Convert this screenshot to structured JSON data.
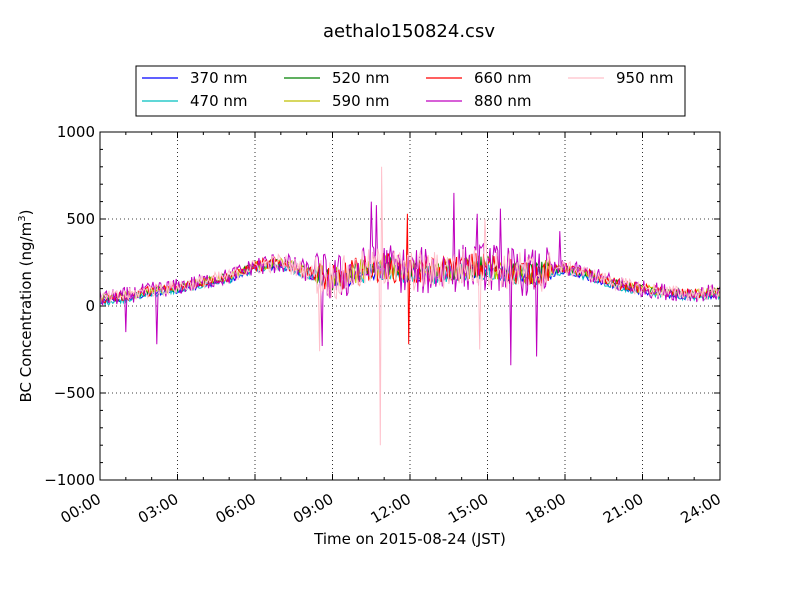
{
  "chart_data": {
    "type": "line",
    "title": "aethalo150824.csv",
    "xlabel": "Time on 2015-08-24 (JST)",
    "ylabel_main": "BC Concentration (ng/m",
    "ylabel_sup": "3",
    "ylabel_close": ")",
    "xlim": [
      0,
      24
    ],
    "ylim": [
      -1000,
      1000
    ],
    "x_ticks": [
      {
        "value": 0,
        "label": "00:00"
      },
      {
        "value": 3,
        "label": "03:00"
      },
      {
        "value": 6,
        "label": "06:00"
      },
      {
        "value": 9,
        "label": "09:00"
      },
      {
        "value": 12,
        "label": "12:00"
      },
      {
        "value": 15,
        "label": "15:00"
      },
      {
        "value": 18,
        "label": "18:00"
      },
      {
        "value": 21,
        "label": "21:00"
      },
      {
        "value": 24,
        "label": "24:00"
      }
    ],
    "y_ticks": [
      {
        "value": -1000,
        "label": "−1000"
      },
      {
        "value": -500,
        "label": "−500"
      },
      {
        "value": 0,
        "label": "0"
      },
      {
        "value": 500,
        "label": "500"
      },
      {
        "value": 1000,
        "label": "1000"
      }
    ],
    "grid": "dotted",
    "legend_position": "top-center",
    "series": [
      {
        "name": "370 nm",
        "color": "#0000ff"
      },
      {
        "name": "470 nm",
        "color": "#00bfbf"
      },
      {
        "name": "520 nm",
        "color": "#008000"
      },
      {
        "name": "590 nm",
        "color": "#bfbf00"
      },
      {
        "name": "660 nm",
        "color": "#ff0000"
      },
      {
        "name": "880 nm",
        "color": "#bf00bf"
      },
      {
        "name": "950 nm",
        "color": "#ffc0cb"
      }
    ],
    "baseline_profile": [
      {
        "x": 0,
        "y": 40
      },
      {
        "x": 1,
        "y": 60
      },
      {
        "x": 2,
        "y": 90
      },
      {
        "x": 3,
        "y": 110
      },
      {
        "x": 4,
        "y": 140
      },
      {
        "x": 5,
        "y": 170
      },
      {
        "x": 6,
        "y": 230
      },
      {
        "x": 7,
        "y": 250
      },
      {
        "x": 8,
        "y": 200
      },
      {
        "x": 9,
        "y": 150
      },
      {
        "x": 10,
        "y": 200
      },
      {
        "x": 11,
        "y": 230
      },
      {
        "x": 12,
        "y": 200
      },
      {
        "x": 13,
        "y": 200
      },
      {
        "x": 14,
        "y": 220
      },
      {
        "x": 15,
        "y": 230
      },
      {
        "x": 16,
        "y": 200
      },
      {
        "x": 17,
        "y": 190
      },
      {
        "x": 18,
        "y": 220
      },
      {
        "x": 19,
        "y": 180
      },
      {
        "x": 20,
        "y": 130
      },
      {
        "x": 21,
        "y": 100
      },
      {
        "x": 22,
        "y": 80
      },
      {
        "x": 23,
        "y": 70
      },
      {
        "x": 24,
        "y": 80
      }
    ],
    "notable_points": [
      {
        "series": "950 nm",
        "x": 10.9,
        "y": 800
      },
      {
        "series": "950 nm",
        "x": 10.85,
        "y": -800
      },
      {
        "series": "880 nm",
        "x": 10.7,
        "y": 580
      },
      {
        "series": "880 nm",
        "x": 10.5,
        "y": 600
      },
      {
        "series": "880 nm",
        "x": 13.7,
        "y": 650
      },
      {
        "series": "880 nm",
        "x": 14.6,
        "y": 530
      },
      {
        "series": "880 nm",
        "x": 15.5,
        "y": 560
      },
      {
        "series": "880 nm",
        "x": 15.9,
        "y": -340
      },
      {
        "series": "880 nm",
        "x": 16.9,
        "y": -290
      },
      {
        "series": "880 nm",
        "x": 2.2,
        "y": -220
      },
      {
        "series": "880 nm",
        "x": 1.0,
        "y": -150
      },
      {
        "series": "880 nm",
        "x": 8.6,
        "y": -230
      },
      {
        "series": "660 nm",
        "x": 11.9,
        "y": 530
      },
      {
        "series": "660 nm",
        "x": 11.95,
        "y": -220
      },
      {
        "series": "950 nm",
        "x": 8.5,
        "y": -260
      },
      {
        "series": "950 nm",
        "x": 14.7,
        "y": -250
      },
      {
        "series": "950 nm",
        "x": 14.9,
        "y": 500
      },
      {
        "series": "880 nm",
        "x": 17.8,
        "y": 430
      }
    ]
  }
}
